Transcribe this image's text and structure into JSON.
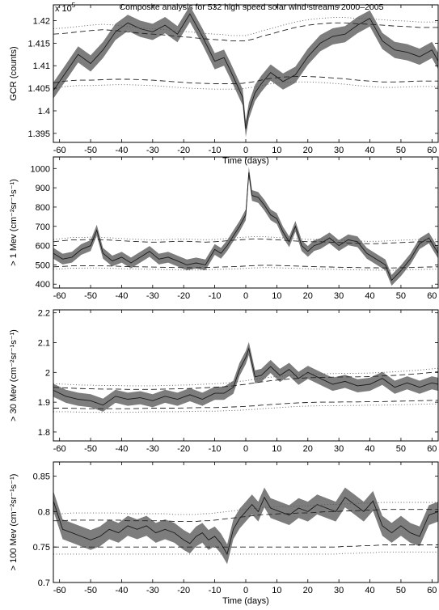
{
  "figure_title": "Composite analysis for 532 high speed solar wind streams 2000–2005",
  "chart_data": [
    {
      "type": "line",
      "title": "Composite analysis for 532 high speed solar wind streams 2000–2005",
      "xlabel": "Time (days)",
      "ylabel": "GCR (counts)",
      "y_multiplier": "x 10",
      "y_multiplier_exp": "5",
      "xlim": [
        -62,
        62
      ],
      "ylim": [
        1.393,
        1.4235
      ],
      "xticks": [
        "-60",
        "-50",
        "-40",
        "-30",
        "-20",
        "-10",
        "0",
        "10",
        "20",
        "30",
        "40",
        "50",
        "60"
      ],
      "yticks": [
        "1.395",
        "1.4",
        "1.405",
        "1.41",
        "1.415",
        "1.42"
      ],
      "x": [
        -62,
        -58,
        -54,
        -50,
        -46,
        -42,
        -38,
        -34,
        -30,
        -26,
        -22,
        -18,
        -14,
        -10,
        -7,
        -5,
        -3,
        -1,
        0,
        1,
        3,
        5,
        8,
        12,
        16,
        20,
        24,
        28,
        32,
        36,
        40,
        44,
        48,
        52,
        56,
        60,
        62
      ],
      "mean": [
        1.4045,
        1.4085,
        1.4125,
        1.4105,
        1.4135,
        1.4175,
        1.4195,
        1.4182,
        1.4175,
        1.419,
        1.417,
        1.4215,
        1.4165,
        1.411,
        1.4118,
        1.409,
        1.406,
        1.403,
        1.396,
        1.4,
        1.404,
        1.406,
        1.4085,
        1.4065,
        1.408,
        1.412,
        1.415,
        1.4165,
        1.417,
        1.419,
        1.4205,
        1.4155,
        1.4135,
        1.413,
        1.412,
        1.4135,
        1.411
      ],
      "band_halfwidth": 0.0018,
      "upper_threshold": [
        1.417,
        1.4172,
        1.4175,
        1.4178,
        1.418,
        1.4178,
        1.4175,
        1.4172,
        1.417,
        1.4168,
        1.4165,
        1.4163,
        1.416,
        1.4158,
        1.4157,
        1.4155,
        1.4155,
        1.4155,
        1.4155,
        1.4157,
        1.416,
        1.4165,
        1.417,
        1.4178,
        1.4185,
        1.419,
        1.4193,
        1.4195,
        1.4195,
        1.4193,
        1.4192,
        1.419,
        1.4188,
        1.4187,
        1.4185,
        1.4185,
        1.4185
      ],
      "lower_threshold": [
        1.4062,
        1.4066,
        1.4068,
        1.4068,
        1.4069,
        1.407,
        1.407,
        1.4069,
        1.4068,
        1.4066,
        1.4064,
        1.4062,
        1.4061,
        1.406,
        1.406,
        1.406,
        1.406,
        1.4061,
        1.4062,
        1.4063,
        1.4065,
        1.4068,
        1.4072,
        1.4075,
        1.4076,
        1.4076,
        1.4075,
        1.4073,
        1.4071,
        1.4068,
        1.4066,
        1.4064,
        1.4064,
        1.4065,
        1.4066,
        1.4066,
        1.4066
      ],
      "dotted_offset": 0.0012,
      "grid": false
    },
    {
      "type": "line",
      "xlabel": "",
      "ylabel": "> 1 Mev (cm⁻²sr⁻¹s⁻¹)",
      "xlim": [
        -62,
        62
      ],
      "ylim": [
        380,
        1060
      ],
      "xticks": [
        "-60",
        "-50",
        "-40",
        "-30",
        "-20",
        "-10",
        "0",
        "10",
        "20",
        "30",
        "40",
        "50",
        "60"
      ],
      "yticks": [
        "400",
        "500",
        "600",
        "700",
        "800",
        "900",
        "1000"
      ],
      "x": [
        -62,
        -59,
        -56,
        -53,
        -50,
        -48,
        -46,
        -43,
        -40,
        -37,
        -34,
        -31,
        -28,
        -25,
        -22,
        -19,
        -16,
        -13,
        -10,
        -8,
        -6,
        -4,
        -2,
        0,
        1,
        2,
        4,
        6,
        8,
        10,
        12,
        14,
        16,
        18,
        20,
        22,
        24,
        27,
        30,
        33,
        36,
        39,
        42,
        45,
        47,
        50,
        53,
        56,
        59,
        62
      ],
      "mean": [
        560,
        530,
        540,
        580,
        600,
        680,
        560,
        520,
        540,
        510,
        540,
        570,
        530,
        540,
        520,
        500,
        510,
        500,
        580,
        560,
        600,
        650,
        700,
        760,
        980,
        860,
        850,
        810,
        760,
        740,
        670,
        620,
        700,
        600,
        570,
        600,
        610,
        640,
        600,
        630,
        620,
        560,
        530,
        500,
        420,
        470,
        530,
        610,
        640,
        560
      ],
      "band_halfwidth": 28,
      "upper_threshold": [
        620,
        625,
        630,
        630,
        632,
        632,
        630,
        628,
        625,
        622,
        620,
        618,
        618,
        620,
        622,
        622,
        620,
        618,
        620,
        622,
        625,
        628,
        630,
        632,
        633,
        635,
        635,
        634,
        632,
        630,
        628,
        626,
        624,
        622,
        620,
        620,
        620,
        618,
        616,
        614,
        612,
        610,
        610,
        612,
        614,
        616,
        618,
        620,
        620,
        620
      ],
      "lower_threshold": [
        490,
        492,
        495,
        495,
        496,
        496,
        495,
        494,
        492,
        491,
        490,
        489,
        488,
        487,
        486,
        485,
        485,
        486,
        488,
        489,
        490,
        491,
        492,
        494,
        495,
        496,
        497,
        498,
        498,
        497,
        496,
        495,
        494,
        493,
        492,
        491,
        490,
        489,
        488,
        487,
        486,
        485,
        485,
        484,
        484,
        485,
        486,
        488,
        489,
        490
      ],
      "dotted_offset": 12,
      "grid": false
    },
    {
      "type": "line",
      "xlabel": "",
      "ylabel": "> 30 Mev (cm⁻²sr⁻¹s⁻¹)",
      "xlim": [
        -62,
        62
      ],
      "ylim": [
        1.77,
        2.21
      ],
      "xticks": [
        "-60",
        "-50",
        "-40",
        "-30",
        "-20",
        "-10",
        "0",
        "10",
        "20",
        "30",
        "40",
        "50",
        "60"
      ],
      "yticks": [
        "1.8",
        "1.9",
        "2",
        "2.1",
        "2.2"
      ],
      "x": [
        -62,
        -58,
        -54,
        -50,
        -46,
        -42,
        -38,
        -34,
        -30,
        -26,
        -22,
        -18,
        -14,
        -10,
        -7,
        -4,
        -2,
        0,
        1,
        3,
        5,
        8,
        11,
        14,
        17,
        20,
        24,
        28,
        32,
        36,
        40,
        44,
        48,
        52,
        56,
        60,
        62
      ],
      "mean": [
        1.94,
        1.92,
        1.91,
        1.905,
        1.89,
        1.92,
        1.91,
        1.915,
        1.905,
        1.92,
        1.91,
        1.925,
        1.91,
        1.93,
        1.93,
        1.95,
        2.01,
        2.05,
        2.08,
        1.985,
        1.99,
        2.02,
        1.99,
        2.01,
        1.98,
        2.0,
        1.98,
        1.96,
        1.97,
        1.955,
        1.96,
        1.98,
        1.95,
        1.965,
        1.95,
        1.965,
        1.96
      ],
      "band_halfwidth": 0.022,
      "upper_threshold": [
        1.95,
        1.948,
        1.946,
        1.945,
        1.944,
        1.944,
        1.943,
        1.943,
        1.943,
        1.944,
        1.945,
        1.946,
        1.948,
        1.95,
        1.952,
        1.955,
        1.958,
        1.96,
        1.962,
        1.965,
        1.968,
        1.972,
        1.975,
        1.978,
        1.98,
        1.982,
        1.983,
        1.984,
        1.985,
        1.985,
        1.986,
        1.988,
        1.99,
        1.993,
        1.996,
        2.0,
        2.002
      ],
      "lower_threshold": [
        1.88,
        1.88,
        1.879,
        1.878,
        1.878,
        1.878,
        1.878,
        1.879,
        1.88,
        1.88,
        1.88,
        1.881,
        1.882,
        1.882,
        1.883,
        1.884,
        1.885,
        1.886,
        1.887,
        1.888,
        1.89,
        1.892,
        1.894,
        1.896,
        1.898,
        1.899,
        1.9,
        1.9,
        1.901,
        1.901,
        1.902,
        1.902,
        1.903,
        1.904,
        1.905,
        1.906,
        1.906
      ],
      "dotted_offset": 0.012,
      "grid": false
    },
    {
      "type": "line",
      "xlabel": "Time (days)",
      "ylabel": "> 100 Mev (cm⁻²sr⁻¹s⁻¹)",
      "xlim": [
        -62,
        62
      ],
      "ylim": [
        0.7,
        0.87
      ],
      "xticks": [
        "-60",
        "-50",
        "-40",
        "-30",
        "-20",
        "-10",
        "0",
        "10",
        "20",
        "30",
        "40",
        "50",
        "60"
      ],
      "yticks": [
        "0.7",
        "0.75",
        "0.8",
        "0.85"
      ],
      "x": [
        -62,
        -59,
        -56,
        -53,
        -50,
        -47,
        -44,
        -41,
        -38,
        -35,
        -32,
        -29,
        -26,
        -23,
        -20,
        -18,
        -16,
        -14,
        -12,
        -10,
        -8,
        -6,
        -4,
        -2,
        0,
        2,
        4,
        6,
        8,
        11,
        14,
        17,
        20,
        23,
        26,
        29,
        32,
        35,
        38,
        41,
        44,
        47,
        50,
        53,
        56,
        59,
        62
      ],
      "mean": [
        0.815,
        0.775,
        0.77,
        0.765,
        0.76,
        0.765,
        0.775,
        0.77,
        0.78,
        0.775,
        0.78,
        0.77,
        0.775,
        0.77,
        0.76,
        0.755,
        0.765,
        0.77,
        0.76,
        0.765,
        0.755,
        0.74,
        0.775,
        0.79,
        0.8,
        0.81,
        0.8,
        0.82,
        0.805,
        0.8,
        0.795,
        0.805,
        0.8,
        0.81,
        0.805,
        0.8,
        0.82,
        0.81,
        0.8,
        0.815,
        0.78,
        0.77,
        0.78,
        0.77,
        0.765,
        0.795,
        0.8
      ],
      "band_halfwidth": 0.014,
      "upper_threshold": [
        0.787,
        0.787,
        0.788,
        0.788,
        0.788,
        0.788,
        0.788,
        0.788,
        0.787,
        0.787,
        0.787,
        0.787,
        0.787,
        0.786,
        0.786,
        0.786,
        0.786,
        0.787,
        0.787,
        0.788,
        0.789,
        0.79,
        0.791,
        0.792,
        0.793,
        0.794,
        0.795,
        0.796,
        0.796,
        0.797,
        0.797,
        0.798,
        0.798,
        0.799,
        0.8,
        0.8,
        0.801,
        0.801,
        0.802,
        0.802,
        0.803,
        0.803,
        0.803,
        0.803,
        0.803,
        0.803,
        0.803
      ],
      "lower_threshold": [
        0.75,
        0.75,
        0.75,
        0.75,
        0.75,
        0.75,
        0.75,
        0.75,
        0.75,
        0.75,
        0.75,
        0.75,
        0.75,
        0.75,
        0.75,
        0.75,
        0.75,
        0.75,
        0.75,
        0.75,
        0.75,
        0.75,
        0.75,
        0.75,
        0.75,
        0.75,
        0.75,
        0.75,
        0.75,
        0.75,
        0.75,
        0.75,
        0.75,
        0.75,
        0.75,
        0.75,
        0.751,
        0.751,
        0.752,
        0.752,
        0.753,
        0.753,
        0.753,
        0.753,
        0.753,
        0.753,
        0.753
      ],
      "dotted_offset": 0.01,
      "grid": false
    }
  ]
}
